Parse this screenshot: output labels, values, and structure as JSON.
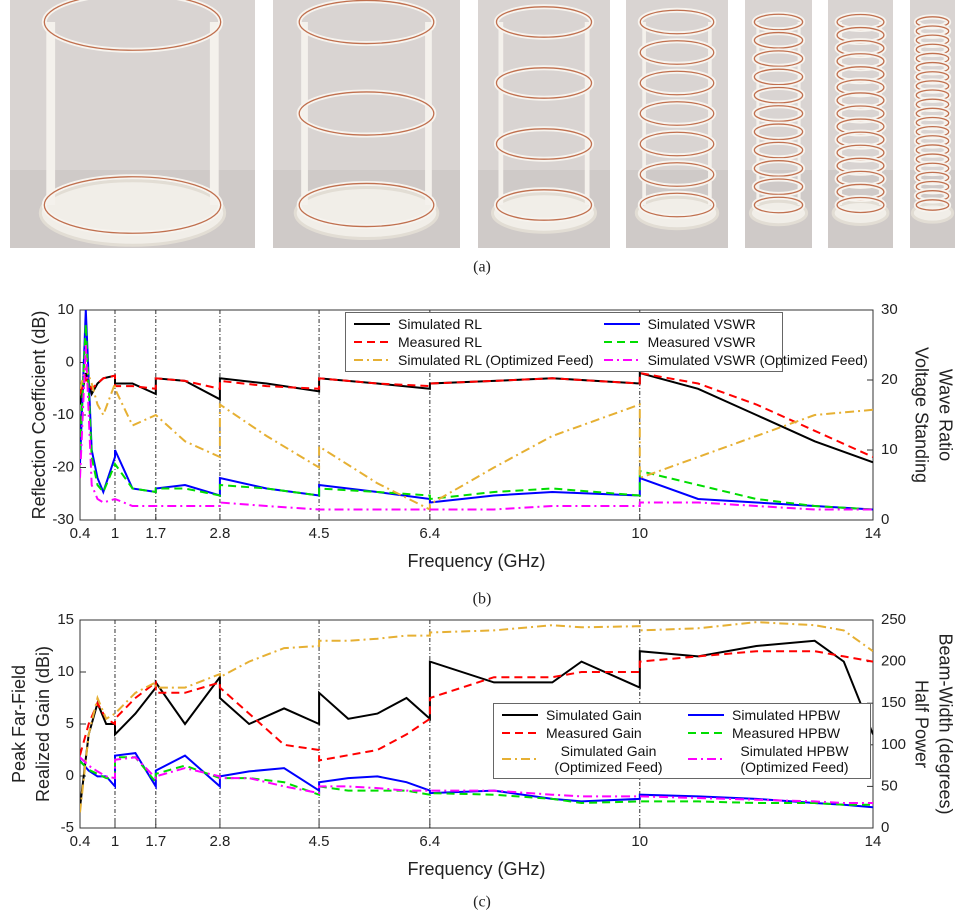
{
  "photos": {
    "caption": "(a)"
  },
  "chart_data": [
    {
      "type": "line",
      "caption": "(b)",
      "xlabel": "Frequency (GHz)",
      "ylabel": [
        "Reflection Coefficient (dB)"
      ],
      "y2label": [
        "Voltage Standing",
        "Wave Ratio"
      ],
      "xlim": [
        0.4,
        14
      ],
      "xticks": [
        0.4,
        1,
        1.7,
        2.8,
        4.5,
        6.4,
        10,
        14
      ],
      "ylim": [
        -30,
        10
      ],
      "yticks": [
        -30,
        -20,
        -10,
        0,
        10
      ],
      "y2lim": [
        0,
        30
      ],
      "y2ticks": [
        0,
        10,
        20,
        30
      ],
      "vlines": [
        1,
        1.7,
        2.8,
        4.5,
        6.4,
        10
      ],
      "legend": "top",
      "x": [
        0.4,
        0.5,
        0.6,
        0.7,
        0.8,
        1.0,
        1.0,
        1.3,
        1.7,
        1.7,
        2.2,
        2.8,
        2.8,
        3.6,
        4.5,
        4.5,
        5.5,
        6.4,
        6.4,
        7.5,
        8.5,
        10,
        10,
        11,
        12,
        13,
        14
      ],
      "series": [
        {
          "name": "Simulated RL",
          "color": "#000000",
          "style": "solid",
          "values": [
            -8,
            -2,
            -6,
            -4,
            -3,
            -2.5,
            -4,
            -4,
            -6,
            -3,
            -3.5,
            -7,
            -3,
            -4,
            -5.5,
            -3,
            -4,
            -5,
            -4,
            -3.5,
            -3,
            -4,
            -2,
            -5,
            -10,
            -15,
            -19
          ]
        },
        {
          "name": "Simulated VSWR",
          "color": "#0000ff",
          "style": "solid",
          "axis": "y2",
          "values": [
            8,
            30,
            10,
            6,
            4,
            9,
            10,
            4.5,
            4,
            4.5,
            5,
            3.5,
            6,
            4.5,
            3.5,
            5,
            4,
            3,
            2.5,
            3.5,
            4,
            3.5,
            6,
            3,
            2.5,
            2,
            1.5
          ]
        },
        {
          "name": "Measured RL",
          "color": "#ff0000",
          "style": "dashed",
          "values": [
            -6,
            -3,
            -5,
            -4,
            -3,
            -2.5,
            -4.5,
            -4.5,
            -5,
            -3,
            -3.5,
            -5,
            -3.5,
            -4.5,
            -5,
            -3,
            -4,
            -4.5,
            -4,
            -3.5,
            -3,
            -4,
            -2,
            -4,
            -8,
            -13,
            -18
          ]
        },
        {
          "name": "Measured VSWR",
          "color": "#00dd00",
          "style": "dashed",
          "axis": "y2",
          "values": [
            10,
            28,
            9,
            5,
            4,
            8,
            8,
            4.5,
            4,
            4.5,
            4.5,
            3.5,
            5,
            4.5,
            3.5,
            4.5,
            4,
            3.5,
            3,
            4,
            4.5,
            3.5,
            7,
            5,
            3,
            2,
            1.5
          ]
        },
        {
          "name": "Simulated RL (Optimized Feed)",
          "color": "#e6b033",
          "style": "dashdot",
          "values": [
            -5,
            -1,
            -4,
            -8,
            -10,
            -4,
            -5,
            -12,
            -10,
            -10,
            -15,
            -18,
            -8,
            -14,
            -20,
            -16,
            -23,
            -28,
            -27,
            -20,
            -14,
            -8,
            -22,
            -18,
            -14,
            -10,
            -9
          ]
        },
        {
          "name": "Simulated VSWR (Optimized Feed)",
          "color": "#ff00ff",
          "style": "dashdot",
          "axis": "y2",
          "values": [
            6,
            25,
            5,
            3,
            2.5,
            3,
            3,
            2,
            2,
            2,
            2,
            2,
            2.5,
            2,
            1.5,
            1.5,
            1.5,
            1.5,
            1.5,
            1.5,
            2,
            2,
            2.5,
            2.5,
            2,
            1.5,
            1.5
          ]
        }
      ]
    },
    {
      "type": "line",
      "caption": "(c)",
      "xlabel": "Frequency (GHz)",
      "ylabel": [
        "Peak Far-Field",
        "Realized Gain (dBi)"
      ],
      "y2label": [
        "Half Power",
        "Beam-Width (degrees)"
      ],
      "xlim": [
        0.4,
        14
      ],
      "xticks": [
        0.4,
        1,
        1.7,
        2.8,
        4.5,
        6.4,
        10,
        14
      ],
      "ylim": [
        -5,
        15
      ],
      "yticks": [
        -5,
        0,
        5,
        10,
        15
      ],
      "y2lim": [
        0,
        250
      ],
      "y2ticks": [
        0,
        50,
        100,
        150,
        200,
        250
      ],
      "vlines": [
        1,
        1.7,
        2.8,
        4.5,
        6.4,
        10
      ],
      "legend": "lower right",
      "x": [
        0.4,
        0.55,
        0.7,
        0.85,
        1.0,
        1.0,
        1.35,
        1.7,
        1.7,
        2.2,
        2.8,
        2.8,
        3.3,
        3.9,
        4.5,
        4.5,
        5.0,
        5.5,
        6.0,
        6.4,
        6.4,
        7.5,
        8.5,
        9.0,
        10,
        10,
        11,
        12,
        13,
        13.5,
        14
      ],
      "series": [
        {
          "name": "Simulated Gain",
          "color": "#000000",
          "style": "solid",
          "values": [
            -3,
            4,
            7,
            5,
            5,
            4,
            6,
            8.5,
            9,
            5,
            9.5,
            7.5,
            5,
            6.5,
            5,
            8,
            5.5,
            6,
            7.5,
            5.5,
            11,
            9,
            9,
            11,
            8.5,
            12,
            11.5,
            12.5,
            13,
            11,
            4
          ]
        },
        {
          "name": "Simulated HPBW",
          "color": "#0000ff",
          "style": "solid",
          "axis": "y2",
          "values": [
            81,
            69,
            62,
            62,
            50,
            87,
            90,
            50,
            69,
            87,
            50,
            62,
            68,
            72,
            45,
            55,
            60,
            62,
            55,
            45,
            42,
            45,
            35,
            32,
            35,
            40,
            38,
            35,
            30,
            28,
            25
          ]
        },
        {
          "name": "Measured Gain",
          "color": "#ff0000",
          "style": "dashed",
          "values": [
            2,
            5,
            7,
            5.5,
            5,
            5.5,
            7.5,
            9,
            8,
            8,
            9,
            8.5,
            6,
            3,
            2.5,
            1.5,
            2,
            2.5,
            4,
            5.5,
            7.5,
            9.5,
            9.5,
            10,
            10,
            11,
            11.5,
            12,
            12,
            11.5,
            11
          ]
        },
        {
          "name": "Measured HPBW",
          "color": "#00dd00",
          "style": "dashed",
          "axis": "y2",
          "values": [
            80,
            70,
            65,
            60,
            60,
            85,
            85,
            55,
            65,
            75,
            60,
            60,
            60,
            55,
            40,
            50,
            45,
            45,
            45,
            40,
            42,
            40,
            35,
            30,
            32,
            32,
            32,
            30,
            30,
            28,
            28
          ]
        },
        {
          "name": "Simulated Gain (Optimized Feed)",
          "color": "#e6b033",
          "style": "dashdot",
          "values": [
            -3.5,
            4,
            7.5,
            5.5,
            6,
            6,
            8,
            9,
            8.5,
            8.5,
            9.8,
            9.5,
            11,
            12.3,
            12.5,
            13,
            13,
            13.2,
            13.5,
            13.5,
            13.8,
            14,
            14.5,
            14.3,
            14.4,
            14,
            14.2,
            14.8,
            14.5,
            14,
            12
          ]
        },
        {
          "name": "Simulated HPBW (Optimized Feed)",
          "color": "#ff00ff",
          "style": "dashdot",
          "axis": "y2",
          "values": [
            85,
            75,
            68,
            62,
            60,
            82,
            85,
            60,
            62,
            72,
            62,
            60,
            60,
            50,
            42,
            50,
            50,
            48,
            45,
            45,
            45,
            45,
            40,
            38,
            38,
            38,
            36,
            34,
            32,
            30,
            30
          ]
        }
      ]
    }
  ]
}
